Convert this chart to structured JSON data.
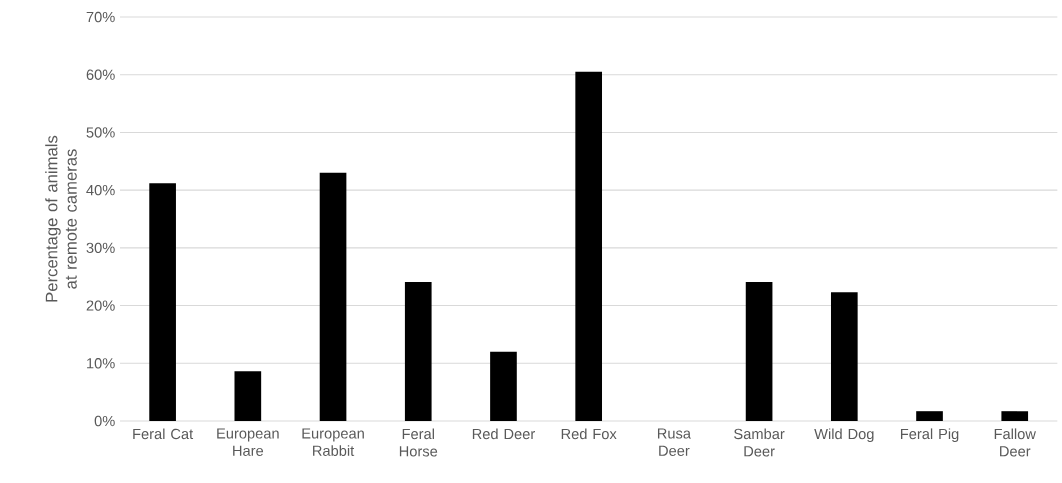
{
  "chart_data": {
    "type": "bar",
    "ylabel": "Percentage of animals at remote cameras",
    "categories": [
      "Feral Cat",
      "European Hare",
      "European Rabbit",
      "Feral Horse",
      "Red Deer",
      "Red Fox",
      "Rusa Deer",
      "Sambar Deer",
      "Wild Dog",
      "Feral Pig",
      "Fallow Deer"
    ],
    "values": [
      41.2,
      8.6,
      43.0,
      24.1,
      12.0,
      60.5,
      0,
      24.1,
      22.3,
      1.7,
      1.7
    ],
    "color": "#000000",
    "ylim": [
      0,
      70
    ],
    "yticks": [
      {
        "value": 0,
        "label": "0%"
      },
      {
        "value": 10,
        "label": "10%"
      },
      {
        "value": 20,
        "label": "20%"
      },
      {
        "value": 30,
        "label": "30%"
      },
      {
        "value": 40,
        "label": "40%"
      },
      {
        "value": 50,
        "label": "50%"
      },
      {
        "value": 60,
        "label": "60%"
      },
      {
        "value": 70,
        "label": "70%"
      }
    ],
    "grid": "y"
  }
}
